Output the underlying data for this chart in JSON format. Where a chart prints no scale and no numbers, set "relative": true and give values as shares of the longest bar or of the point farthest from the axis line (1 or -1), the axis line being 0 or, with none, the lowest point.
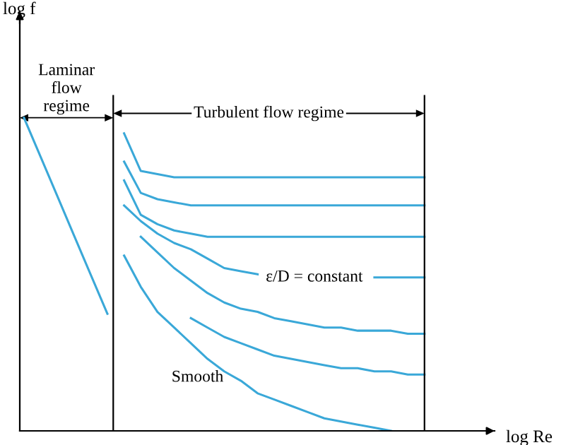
{
  "chart_data": {
    "type": "line",
    "relative": true,
    "xlabel": "log Re",
    "marker": "none",
    "line_style": "solid",
    "categories": [
      null,
      null,
      null,
      null,
      null,
      null,
      null,
      null,
      null,
      null,
      null,
      null,
      null,
      null,
      null,
      null,
      null,
      null,
      null,
      null,
      null,
      null,
      null,
      null,
      null
    ],
    "series": [
      {
        "color": "#3aa8d8",
        "values": [
          1.0,
          0.875,
          0.75,
          0.624,
          0.499,
          0.374,
          null,
          null,
          null,
          null,
          null,
          null,
          null,
          null,
          null,
          null,
          null,
          null,
          null,
          null,
          null,
          null,
          null,
          null,
          null
        ]
      },
      {
        "color": "#3aa8d8",
        "values": [
          null,
          null,
          null,
          null,
          null,
          null,
          0.95,
          0.83,
          0.82,
          0.81,
          0.81,
          0.81,
          0.81,
          0.81,
          0.81,
          0.81,
          0.81,
          0.81,
          0.81,
          0.81,
          0.81,
          0.81,
          0.81,
          0.81,
          0.81
        ]
      },
      {
        "color": "#3aa8d8",
        "values": [
          null,
          null,
          null,
          null,
          null,
          null,
          0.86,
          0.76,
          0.74,
          0.73,
          0.72,
          0.72,
          0.72,
          0.72,
          0.72,
          0.72,
          0.72,
          0.72,
          0.72,
          0.72,
          0.72,
          0.72,
          0.72,
          0.72,
          0.72
        ]
      },
      {
        "color": "#3aa8d8",
        "values": [
          null,
          null,
          null,
          null,
          null,
          null,
          0.8,
          0.69,
          0.66,
          0.64,
          0.63,
          0.62,
          0.62,
          0.62,
          0.62,
          0.62,
          0.62,
          0.62,
          0.62,
          0.62,
          0.62,
          0.62,
          0.62,
          0.62,
          0.62
        ]
      },
      {
        "color": "#3aa8d8",
        "values": [
          null,
          null,
          null,
          null,
          null,
          null,
          0.72,
          0.67,
          0.63,
          0.6,
          0.58,
          0.55,
          0.52,
          0.51,
          0.5,
          null,
          null,
          null,
          null,
          null,
          null,
          0.49,
          0.49,
          0.49,
          0.49
        ]
      },
      {
        "color": "#3aa8d8",
        "values": [
          null,
          null,
          null,
          null,
          null,
          null,
          null,
          0.62,
          0.57,
          0.52,
          0.48,
          0.44,
          0.41,
          0.39,
          0.38,
          0.36,
          0.35,
          0.34,
          0.33,
          0.33,
          0.32,
          0.32,
          0.32,
          0.31,
          0.31
        ]
      },
      {
        "color": "#3aa8d8",
        "values": [
          null,
          null,
          null,
          null,
          null,
          null,
          null,
          null,
          null,
          null,
          0.36,
          0.33,
          0.3,
          0.28,
          0.26,
          0.24,
          0.23,
          0.22,
          0.21,
          0.2,
          0.2,
          0.19,
          0.19,
          0.18,
          0.18
        ]
      },
      {
        "color": "#3aa8d8",
        "values": [
          null,
          null,
          null,
          null,
          null,
          null,
          0.56,
          0.46,
          0.38,
          0.33,
          0.28,
          0.23,
          0.19,
          0.16,
          0.12,
          0.1,
          0.08,
          0.06,
          0.04,
          0.03,
          0.02,
          0.01,
          0.0,
          null,
          null
        ]
      }
    ],
    "annotations": [
      "Laminar\nflow\nregime",
      "Turbulent flow regime",
      "ε/D = constant",
      "Smooth",
      "log f"
    ]
  }
}
